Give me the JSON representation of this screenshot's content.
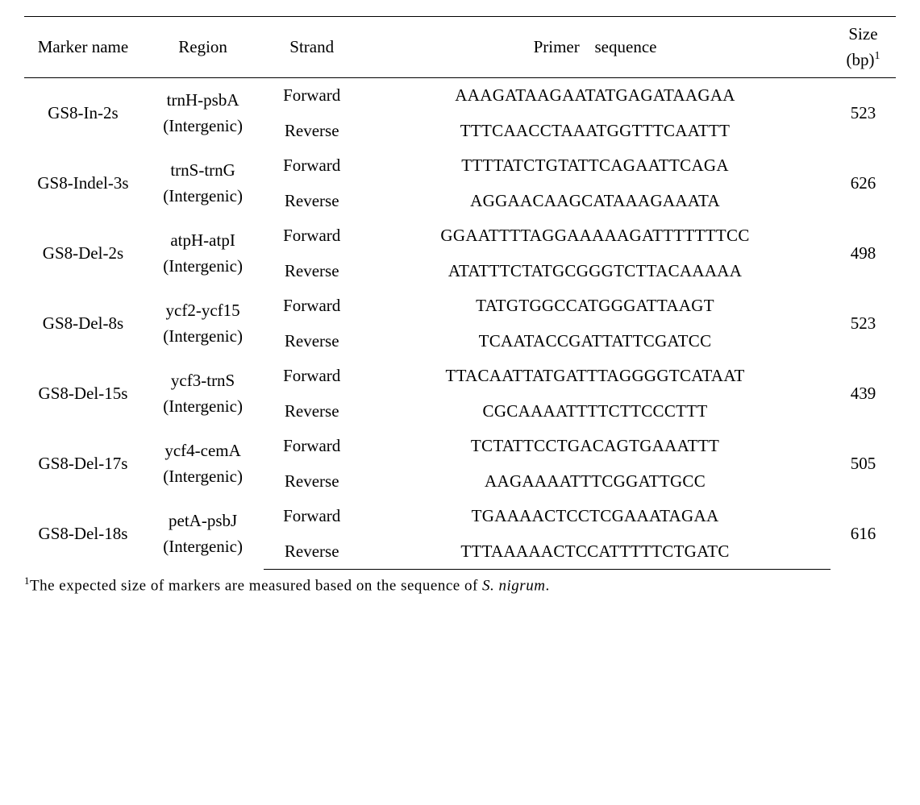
{
  "headers": {
    "marker": "Marker name",
    "region": "Region",
    "strand": "Strand",
    "primer": "Primer",
    "sequence": "sequence",
    "size": "Size (bp)",
    "size_sup": "1"
  },
  "rows": [
    {
      "marker": "GS8-In-2s",
      "region_top": "trnH-psbA",
      "region_bot": "(Intergenic)",
      "fwd_label": "Forward",
      "rev_label": "Reverse",
      "fwd_seq": "AAAGATAAGAATATGAGATAAGAA",
      "rev_seq": "TTTCAACCTAAATGGTTTCAATTT",
      "size": "523"
    },
    {
      "marker": "GS8-Indel-3s",
      "region_top": "trnS-trnG",
      "region_bot": "(Intergenic)",
      "fwd_label": "Forward",
      "rev_label": "Reverse",
      "fwd_seq": "TTTTATCTGTATTCAGAATTCAGA",
      "rev_seq": "AGGAACAAGCATAAAGAAATA",
      "size": "626"
    },
    {
      "marker": "GS8-Del-2s",
      "region_top": "atpH-atpI",
      "region_bot": "(Intergenic)",
      "fwd_label": "Forward",
      "rev_label": "Reverse",
      "fwd_seq": "GGAATTTTAGGAAAAAGATTTTTTTCC",
      "rev_seq": "ATATTTCTATGCGGGTCTTACAAAAA",
      "size": "498"
    },
    {
      "marker": "GS8-Del-8s",
      "region_top": "ycf2-ycf15",
      "region_bot": "(Intergenic)",
      "fwd_label": "Forward",
      "rev_label": "Reverse",
      "fwd_seq": "TATGTGGCCATGGGATTAAGT",
      "rev_seq": "TCAATACCGATTATTCGATCC",
      "size": "523"
    },
    {
      "marker": "GS8-Del-15s",
      "region_top": "ycf3-trnS",
      "region_bot": "(Intergenic)",
      "fwd_label": "Forward",
      "rev_label": "Reverse",
      "fwd_seq": "TTACAATTATGATTTAGGGGTCATAAT",
      "rev_seq": "CGCAAAATTTTCTTCCCTTT",
      "size": "439"
    },
    {
      "marker": "GS8-Del-17s",
      "region_top": "ycf4-cemA",
      "region_bot": "(Intergenic)",
      "fwd_label": "Forward",
      "rev_label": "Reverse",
      "fwd_seq": "TCTATTCCTGACAGTGAAATTT",
      "rev_seq": "AAGAAAATTTCGGATTGCC",
      "size": "505"
    },
    {
      "marker": "GS8-Del-18s",
      "region_top": "petA-psbJ",
      "region_bot": "(Intergenic)",
      "fwd_label": "Forward",
      "rev_label": "Reverse",
      "fwd_seq": "TGAAAACTCCTCGAAATAGAA",
      "rev_seq": "TTTAAAAACTCCATTTTTCTGATC",
      "size": "616"
    }
  ],
  "footnote": {
    "sup": "1",
    "text_a": "The expected size of markers are measured based on the sequence of ",
    "text_b": "S. nigrum",
    "text_c": "."
  }
}
